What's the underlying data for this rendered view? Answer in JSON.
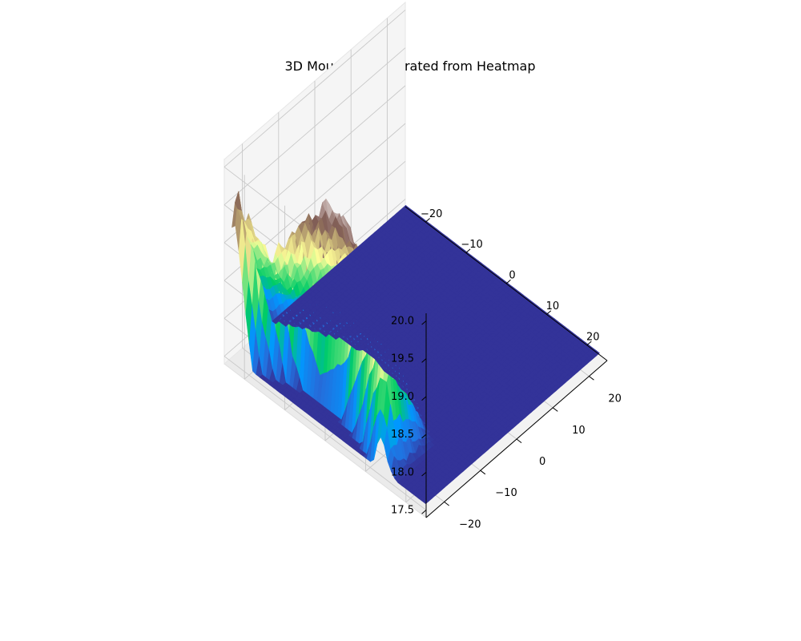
{
  "chart_data": {
    "type": "surface3d",
    "title": "3D Mountain Generated from Heatmap",
    "xlabel": "",
    "ylabel": "",
    "zlabel": "",
    "x_ticks": [
      -20,
      -10,
      0,
      10,
      20
    ],
    "y_ticks": [
      -20,
      -10,
      0,
      10,
      20
    ],
    "z_ticks": [
      "17.5",
      "18.0",
      "18.5",
      "19.0",
      "19.5",
      "20.0"
    ],
    "x_range": [
      -25,
      25
    ],
    "y_range": [
      -25,
      25
    ],
    "zlim": [
      17.4,
      20.1
    ],
    "base_level": 17.5,
    "grid": true,
    "colormap": "terrain",
    "mountain_ridge": {
      "x_at_y": [
        {
          "y": -23,
          "x": -23.5,
          "z": 19.6
        },
        {
          "y": -18,
          "x": -20.5,
          "z": 18.9
        },
        {
          "y": -12,
          "x": -18.0,
          "z": 19.6
        },
        {
          "y": -6,
          "x": -17.0,
          "z": 20.0
        },
        {
          "y": 0,
          "x": -17.5,
          "z": 19.85
        },
        {
          "y": 6,
          "x": -19.0,
          "z": 19.6
        },
        {
          "y": 11,
          "x": -21.0,
          "z": 19.3
        },
        {
          "y": 15,
          "x": -23.0,
          "z": 18.0
        }
      ]
    }
  },
  "tick_labels": {
    "x": [
      "−20",
      "−10",
      "0",
      "10",
      "20"
    ],
    "y": [
      "−20",
      "−10",
      "0",
      "10",
      "20"
    ],
    "z": [
      "17.5",
      "18.0",
      "18.5",
      "19.0",
      "19.5",
      "20.0"
    ]
  }
}
